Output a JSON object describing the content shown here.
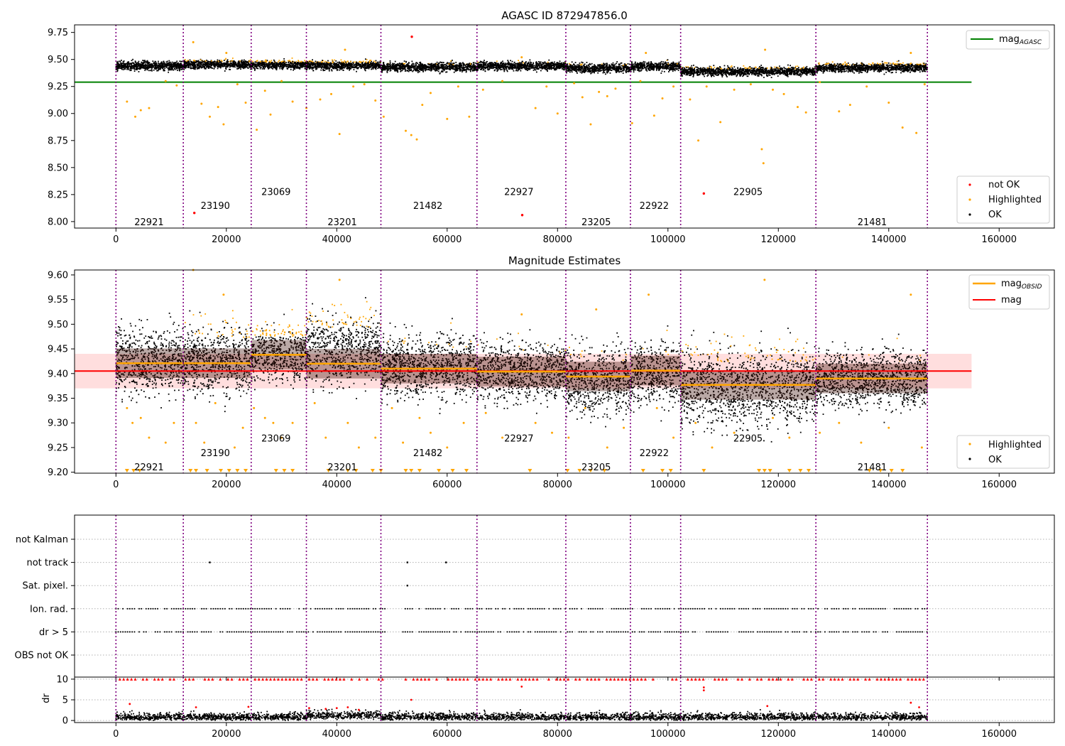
{
  "chart_data": [
    {
      "type": "scatter",
      "title": "AGASC ID 872947856.0",
      "xlim": [
        -7500,
        170000
      ],
      "ylim": [
        7.94,
        9.82
      ],
      "x_ticks": [
        0,
        20000,
        40000,
        60000,
        80000,
        100000,
        120000,
        140000,
        160000
      ],
      "x_tick_labels": [
        "0",
        "20000",
        "40000",
        "60000",
        "80000",
        "100000",
        "120000",
        "140000",
        "160000"
      ],
      "y_ticks": [
        8.0,
        8.25,
        8.5,
        8.75,
        9.0,
        9.25,
        9.5,
        9.75
      ],
      "y_tick_labels": [
        "8.00",
        "8.25",
        "8.50",
        "8.75",
        "9.00",
        "9.25",
        "9.50",
        "9.75"
      ],
      "lines": [
        {
          "name": "mag",
          "sub": "AGASC",
          "value": 9.29,
          "x_range": [
            -7500,
            155000
          ],
          "color": "#008000"
        }
      ],
      "band_center": [
        9.44,
        9.455,
        9.45,
        9.445,
        9.43,
        9.44,
        9.42,
        9.435,
        9.39,
        9.425,
        9.41
      ],
      "band_halfwidth": 0.045,
      "highlight_fraction": [
        0.0,
        0.35,
        0.8,
        0.6,
        0.1,
        0.05,
        0.05,
        0.05,
        0.3,
        0.45,
        0.05
      ],
      "outliers_highlighted": [
        [
          2000,
          9.11
        ],
        [
          3500,
          8.97
        ],
        [
          4500,
          9.03
        ],
        [
          6000,
          9.05
        ],
        [
          9000,
          9.3
        ],
        [
          11000,
          9.26
        ],
        [
          14000,
          9.66
        ],
        [
          15500,
          9.09
        ],
        [
          17000,
          8.97
        ],
        [
          18500,
          9.06
        ],
        [
          19500,
          8.9
        ],
        [
          20000,
          9.56
        ],
        [
          22000,
          9.27
        ],
        [
          23500,
          9.1
        ],
        [
          25500,
          8.85
        ],
        [
          27000,
          9.21
        ],
        [
          28000,
          8.99
        ],
        [
          30000,
          9.3
        ],
        [
          32000,
          9.11
        ],
        [
          34500,
          9.05
        ],
        [
          37000,
          9.13
        ],
        [
          39000,
          9.18
        ],
        [
          40500,
          8.81
        ],
        [
          41500,
          9.59
        ],
        [
          43000,
          9.25
        ],
        [
          45000,
          9.27
        ],
        [
          47000,
          9.12
        ],
        [
          48500,
          8.97
        ],
        [
          52500,
          8.84
        ],
        [
          53500,
          8.8
        ],
        [
          54500,
          8.76
        ],
        [
          55500,
          9.08
        ],
        [
          57000,
          9.19
        ],
        [
          60000,
          8.95
        ],
        [
          62000,
          9.25
        ],
        [
          64000,
          8.97
        ],
        [
          66500,
          9.22
        ],
        [
          70000,
          9.3
        ],
        [
          73500,
          9.52
        ],
        [
          76000,
          9.05
        ],
        [
          78000,
          9.25
        ],
        [
          80000,
          9.0
        ],
        [
          83000,
          9.28
        ],
        [
          84500,
          9.15
        ],
        [
          86000,
          8.9
        ],
        [
          87500,
          9.2
        ],
        [
          89000,
          9.16
        ],
        [
          90500,
          9.23
        ],
        [
          93500,
          8.91
        ],
        [
          95000,
          9.3
        ],
        [
          96000,
          9.56
        ],
        [
          97500,
          8.98
        ],
        [
          99000,
          9.14
        ],
        [
          101000,
          9.25
        ],
        [
          104000,
          9.13
        ],
        [
          105500,
          8.75
        ],
        [
          107000,
          9.25
        ],
        [
          109500,
          8.92
        ],
        [
          112000,
          9.22
        ],
        [
          115000,
          9.27
        ],
        [
          117000,
          8.67
        ],
        [
          117300,
          8.54
        ],
        [
          117600,
          9.59
        ],
        [
          119000,
          9.22
        ],
        [
          121000,
          9.18
        ],
        [
          123500,
          9.06
        ],
        [
          125000,
          9.01
        ],
        [
          127500,
          9.29
        ],
        [
          131000,
          9.02
        ],
        [
          133000,
          9.08
        ],
        [
          136000,
          9.25
        ],
        [
          140000,
          9.1
        ],
        [
          142500,
          8.87
        ],
        [
          145000,
          8.82
        ],
        [
          144000,
          9.56
        ],
        [
          146500,
          9.27
        ]
      ],
      "outliers_not_ok": [
        [
          53600,
          9.71
        ],
        [
          73600,
          8.06
        ],
        [
          106500,
          8.26
        ],
        [
          14200,
          8.08
        ]
      ],
      "obsid_bounds": [
        0,
        12200,
        24500,
        34500,
        48000,
        65400,
        81500,
        93200,
        102300,
        126800,
        147000
      ],
      "obsid_labels": [
        {
          "label": "22921",
          "x": 6000,
          "y": 8.0
        },
        {
          "label": "23190",
          "x": 18000,
          "y": 8.15
        },
        {
          "label": "23069",
          "x": 29000,
          "y": 8.28
        },
        {
          "label": "23201",
          "x": 41000,
          "y": 8.0
        },
        {
          "label": "21482",
          "x": 56500,
          "y": 8.15
        },
        {
          "label": "22927",
          "x": 73000,
          "y": 8.28
        },
        {
          "label": "23205",
          "x": 87000,
          "y": 8.0
        },
        {
          "label": "22922",
          "x": 97500,
          "y": 8.15
        },
        {
          "label": "22905",
          "x": 114500,
          "y": 8.28
        },
        {
          "label": "21481",
          "x": 137000,
          "y": 8.0
        }
      ],
      "legend_top": "top-right",
      "legend_bottom": {
        "placement": "bottom-right",
        "entries": [
          {
            "label": "not OK",
            "color": "#ff0000"
          },
          {
            "label": "Highlighted",
            "color": "#ffa500"
          },
          {
            "label": "OK",
            "color": "#000000"
          }
        ]
      }
    },
    {
      "type": "scatter",
      "title": "Magnitude Estimates",
      "xlim": [
        -7500,
        170000
      ],
      "ylim": [
        9.198,
        9.61
      ],
      "x_ticks": [
        0,
        20000,
        40000,
        60000,
        80000,
        100000,
        120000,
        140000,
        160000
      ],
      "x_tick_labels": [
        "0",
        "20000",
        "40000",
        "60000",
        "80000",
        "100000",
        "120000",
        "140000",
        "160000"
      ],
      "y_ticks": [
        9.2,
        9.25,
        9.3,
        9.35,
        9.4,
        9.45,
        9.5,
        9.55,
        9.6
      ],
      "y_tick_labels": [
        "9.20",
        "9.25",
        "9.30",
        "9.35",
        "9.40",
        "9.45",
        "9.50",
        "9.55",
        "9.60"
      ],
      "lines": [
        {
          "name": "mag",
          "value": 9.405,
          "x_range": [
            -7500,
            155000
          ],
          "color": "#ff0000"
        }
      ],
      "mag_band": [
        9.37,
        9.44
      ],
      "obsid_mags": [
        9.421,
        9.421,
        9.438,
        9.42,
        9.41,
        9.404,
        9.394,
        9.406,
        9.377,
        9.39
      ],
      "obsid_mag_color": "#ffa500",
      "obsid_mag_label": {
        "name": "mag",
        "sub": "OBSID"
      },
      "band_center": [
        9.425,
        9.43,
        9.44,
        9.45,
        9.415,
        9.405,
        9.385,
        9.4,
        9.375,
        9.39
      ],
      "band_halfwidth": [
        0.075,
        0.078,
        0.065,
        0.08,
        0.07,
        0.068,
        0.075,
        0.07,
        0.09,
        0.065
      ],
      "highlight_fraction": [
        0.0,
        0.4,
        0.85,
        0.6,
        0.1,
        0.05,
        0.05,
        0.1,
        0.4,
        0.05
      ],
      "outliers_highlighted": [
        [
          2000,
          9.33
        ],
        [
          3000,
          9.3
        ],
        [
          4500,
          9.31
        ],
        [
          6000,
          9.27
        ],
        [
          9000,
          9.26
        ],
        [
          10500,
          9.3
        ],
        [
          14000,
          9.61
        ],
        [
          14500,
          9.3
        ],
        [
          16000,
          9.26
        ],
        [
          18000,
          9.34
        ],
        [
          19500,
          9.56
        ],
        [
          21500,
          9.25
        ],
        [
          23000,
          9.29
        ],
        [
          25000,
          9.33
        ],
        [
          27000,
          9.31
        ],
        [
          28500,
          9.3
        ],
        [
          30000,
          9.27
        ],
        [
          32000,
          9.3
        ],
        [
          36000,
          9.34
        ],
        [
          38000,
          9.27
        ],
        [
          40500,
          9.59
        ],
        [
          42000,
          9.3
        ],
        [
          44000,
          9.25
        ],
        [
          47000,
          9.27
        ],
        [
          50000,
          9.33
        ],
        [
          52000,
          9.26
        ],
        [
          55000,
          9.31
        ],
        [
          57000,
          9.28
        ],
        [
          60000,
          9.25
        ],
        [
          63000,
          9.3
        ],
        [
          67000,
          9.32
        ],
        [
          70000,
          9.27
        ],
        [
          73500,
          9.52
        ],
        [
          76000,
          9.3
        ],
        [
          79000,
          9.28
        ],
        [
          82000,
          9.27
        ],
        [
          85000,
          9.33
        ],
        [
          87000,
          9.53
        ],
        [
          89000,
          9.25
        ],
        [
          92000,
          9.29
        ],
        [
          96500,
          9.56
        ],
        [
          98000,
          9.33
        ],
        [
          101000,
          9.27
        ],
        [
          105000,
          9.3
        ],
        [
          108000,
          9.25
        ],
        [
          112000,
          9.28
        ],
        [
          117500,
          9.59
        ],
        [
          119000,
          9.31
        ],
        [
          122000,
          9.27
        ],
        [
          127500,
          9.28
        ],
        [
          131000,
          9.3
        ],
        [
          135000,
          9.26
        ],
        [
          140000,
          9.29
        ],
        [
          144000,
          9.56
        ],
        [
          146000,
          9.25
        ]
      ],
      "floor_markers": [
        2000,
        3200,
        4300,
        13500,
        14500,
        16500,
        19000,
        20500,
        22000,
        23500,
        29000,
        30500,
        32000,
        38500,
        42000,
        43500,
        46500,
        48000,
        52500,
        53500,
        55000,
        58500,
        61000,
        63500,
        75000,
        81800,
        84000,
        86000,
        88500,
        95500,
        99000,
        100500,
        106500,
        116500,
        117500,
        118500,
        122000,
        124000,
        125500,
        136500,
        138500,
        140500,
        142500
      ],
      "obsid_bounds": [
        0,
        12200,
        24500,
        34500,
        48000,
        65400,
        81500,
        93200,
        102300,
        126800,
        147000
      ],
      "obsid_labels": [
        {
          "label": "22921",
          "x": 6000,
          "y": 9.211
        },
        {
          "label": "23190",
          "x": 18000,
          "y": 9.24
        },
        {
          "label": "23069",
          "x": 29000,
          "y": 9.269
        },
        {
          "label": "23201",
          "x": 41000,
          "y": 9.211
        },
        {
          "label": "21482",
          "x": 56500,
          "y": 9.24
        },
        {
          "label": "22927",
          "x": 73000,
          "y": 9.269
        },
        {
          "label": "23205",
          "x": 87000,
          "y": 9.211
        },
        {
          "label": "22922",
          "x": 97500,
          "y": 9.24
        },
        {
          "label": "22905",
          "x": 114500,
          "y": 9.269
        },
        {
          "label": "21481",
          "x": 137000,
          "y": 9.211
        }
      ],
      "legend_top": "top-right",
      "legend_bottom": {
        "placement": "bottom-right",
        "entries": [
          {
            "label": "Highlighted",
            "color": "#ffa500"
          },
          {
            "label": "OK",
            "color": "#000000"
          }
        ]
      }
    },
    {
      "type": "scatter",
      "xlim": [
        -7500,
        170000
      ],
      "categories": [
        "not Kalman",
        "not track",
        "Sat. pixel.",
        "Ion. rad.",
        "dr > 5",
        "OBS not OK"
      ],
      "flag_points": {
        "not Kalman": [],
        "not track": [
          17000,
          52800,
          59800
        ],
        "Sat. pixel.": [
          52800
        ]
      },
      "flag_dense_ranges": {
        "Ion. rad.": [
          [
            0,
            49000
          ],
          [
            52000,
            147000
          ]
        ],
        "dr > 5": [
          [
            0,
            49000
          ],
          [
            52000,
            147000
          ]
        ]
      },
      "obsid_bounds": [
        0,
        12200,
        24500,
        34500,
        48000,
        65400,
        81500,
        93200,
        102300,
        126800,
        147000
      ]
    },
    {
      "type": "scatter",
      "ylabel": "dr",
      "xlim": [
        -7500,
        170000
      ],
      "ylim": [
        -0.5,
        10.5
      ],
      "y_ticks": [
        0,
        5,
        10
      ],
      "y_tick_labels": [
        "0",
        "5",
        "10"
      ],
      "x_ticks": [
        0,
        20000,
        40000,
        60000,
        80000,
        100000,
        120000,
        140000,
        160000
      ],
      "x_tick_labels": [
        "0",
        "20000",
        "40000",
        "60000",
        "80000",
        "100000",
        "120000",
        "140000",
        "160000"
      ],
      "capped_value": 10,
      "red_outliers": [
        [
          2500,
          4
        ],
        [
          14500,
          3.2
        ],
        [
          24000,
          3.3
        ],
        [
          35000,
          3
        ],
        [
          38000,
          2.8
        ],
        [
          40000,
          3
        ],
        [
          42000,
          3.2
        ],
        [
          44000,
          2.6
        ],
        [
          53500,
          5
        ],
        [
          73500,
          8.2
        ],
        [
          106500,
          8
        ],
        [
          106500,
          7.3
        ],
        [
          118000,
          3.5
        ],
        [
          144000,
          4.3
        ],
        [
          145500,
          3.2
        ]
      ],
      "obsid_bounds": [
        0,
        12200,
        24500,
        34500,
        48000,
        65400,
        81500,
        93200,
        102300,
        126800,
        147000
      ]
    }
  ]
}
